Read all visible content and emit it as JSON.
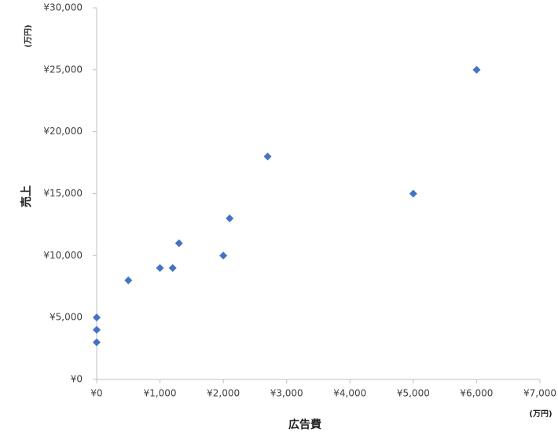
{
  "chart_data": {
    "type": "scatter",
    "x_label": "広告費",
    "y_label": "売上",
    "x_unit": "(万円)",
    "y_unit": "(万円)",
    "color": "#4472c4",
    "x": [
      0,
      0,
      0,
      500,
      1000,
      1200,
      1300,
      2000,
      2100,
      2700,
      5000,
      6000
    ],
    "values": [
      3000,
      4000,
      5000,
      8000,
      9000,
      9000,
      11000,
      10000,
      13000,
      18000,
      15000,
      25000
    ],
    "xlim": [
      0,
      7000
    ],
    "ylim": [
      0,
      30000
    ],
    "xticks": [
      {
        "value": 0,
        "label": "¥0"
      },
      {
        "value": 1000,
        "label": "¥1,000"
      },
      {
        "value": 2000,
        "label": "¥2,000"
      },
      {
        "value": 3000,
        "label": "¥3,000"
      },
      {
        "value": 4000,
        "label": "¥4,000"
      },
      {
        "value": 5000,
        "label": "¥5,000"
      },
      {
        "value": 6000,
        "label": "¥6,000"
      },
      {
        "value": 7000,
        "label": "¥7,000"
      }
    ],
    "yticks": [
      {
        "value": 0,
        "label": "¥0"
      },
      {
        "value": 5000,
        "label": "¥5,000"
      },
      {
        "value": 10000,
        "label": "¥10,000"
      },
      {
        "value": 15000,
        "label": "¥15,000"
      },
      {
        "value": 20000,
        "label": "¥20,000"
      },
      {
        "value": 25000,
        "label": "¥25,000"
      },
      {
        "value": 30000,
        "label": "¥30,000"
      }
    ],
    "grid": false
  }
}
